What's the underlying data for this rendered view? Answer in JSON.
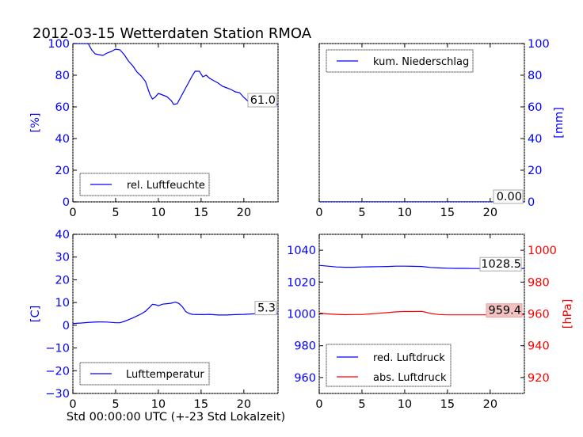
{
  "title": "2012-03-15 Wetterdaten Station RMOA",
  "xlabel": "Std 00:00:00 UTC (+-23 Std Lokalzeit)",
  "colors": {
    "blue": "#0000ff",
    "red": "#ff0000",
    "black": "#000000",
    "annotation_red_bg": "#f4c2c2"
  },
  "chart_data": [
    {
      "id": "humidity",
      "type": "line",
      "ylabel": "[%]",
      "axis_side": "left",
      "axis_color": "#0000ff",
      "xlim": [
        0,
        24
      ],
      "ylim": [
        0,
        100
      ],
      "xticks": [
        "0",
        "5",
        "10",
        "15",
        "20"
      ],
      "yticks": [
        "0",
        "20",
        "40",
        "60",
        "80",
        "100"
      ],
      "legend": {
        "placement": "lower-left",
        "entries": [
          "rel. Luftfeuchte"
        ]
      },
      "annotation": "61.0",
      "series": [
        {
          "name": "rel. Luftfeuchte",
          "color": "#0000ff",
          "x": [
            0,
            1.0,
            1.8,
            2.2,
            2.6,
            3.0,
            3.5,
            4.0,
            4.5,
            5.0,
            5.5,
            6.0,
            6.5,
            7.0,
            7.5,
            8.0,
            8.5,
            9.0,
            9.3,
            9.6,
            10.0,
            10.5,
            11.0,
            11.5,
            11.8,
            12.2,
            12.5,
            13.0,
            13.5,
            14.0,
            14.3,
            14.8,
            15.2,
            15.6,
            16.0,
            16.5,
            17.0,
            17.5,
            18.0,
            18.5,
            19.0,
            19.5,
            20.0,
            20.5,
            21.0,
            21.5,
            22.0,
            22.5,
            23.0,
            23.5,
            24.0
          ],
          "y": [
            100,
            100,
            100,
            96,
            93.5,
            93,
            92.5,
            94,
            95,
            96.5,
            96,
            93,
            89,
            86,
            82,
            79.5,
            76,
            68,
            65,
            66,
            68.5,
            67.5,
            66.5,
            64,
            61.5,
            62,
            65,
            70,
            75,
            80,
            82.5,
            82.5,
            79,
            80,
            78,
            76.5,
            75,
            73,
            72,
            71,
            69.5,
            69,
            66,
            63.5,
            61.5,
            61,
            63,
            63.5,
            63,
            63.5,
            61
          ]
        }
      ]
    },
    {
      "id": "precipitation",
      "type": "line",
      "ylabel": "[mm]",
      "axis_side": "right",
      "axis_color": "#0000ff",
      "xlim": [
        0,
        24
      ],
      "ylim": [
        0,
        100
      ],
      "xticks": [
        "0",
        "5",
        "10",
        "15",
        "20"
      ],
      "yticks": [
        "0",
        "20",
        "40",
        "60",
        "80",
        "100"
      ],
      "legend": {
        "placement": "upper-left",
        "entries": [
          "kum. Niederschlag"
        ]
      },
      "annotation": "0.00",
      "series": [
        {
          "name": "kum. Niederschlag",
          "color": "#0000ff",
          "x": [
            0,
            24
          ],
          "y": [
            0,
            0
          ]
        }
      ]
    },
    {
      "id": "temperature",
      "type": "line",
      "ylabel": "[C]",
      "axis_side": "left",
      "axis_color": "#0000ff",
      "xlim": [
        0,
        24
      ],
      "ylim": [
        -30,
        40
      ],
      "xticks": [
        "0",
        "5",
        "10",
        "15",
        "20"
      ],
      "yticks": [
        "−30",
        "−20",
        "−10",
        "0",
        "10",
        "20",
        "30",
        "40"
      ],
      "legend": {
        "placement": "lower-left",
        "entries": [
          "Lufttemperatur"
        ]
      },
      "annotation": "5.3",
      "series": [
        {
          "name": "Lufttemperatur",
          "color": "#0000ff",
          "x": [
            0,
            1,
            2,
            3,
            4,
            5,
            5.5,
            6,
            7,
            8,
            8.5,
            9.0,
            9.3,
            9.7,
            10.0,
            10.5,
            11.0,
            11.5,
            12.0,
            12.4,
            12.8,
            13.2,
            13.6,
            14.0,
            15.0,
            16.0,
            17.0,
            18.0,
            19.0,
            20.0,
            21.0,
            22.0,
            23.0,
            24.0
          ],
          "y": [
            0.8,
            1.0,
            1.3,
            1.5,
            1.4,
            1.1,
            1.1,
            1.7,
            3.2,
            5.0,
            6.2,
            8.0,
            9.2,
            9.0,
            8.6,
            9.3,
            9.5,
            9.7,
            10.2,
            9.6,
            8.2,
            6.0,
            5.2,
            4.8,
            4.7,
            4.8,
            4.5,
            4.5,
            4.7,
            4.8,
            5.0,
            5.1,
            5.2,
            5.3
          ]
        }
      ]
    },
    {
      "id": "pressure",
      "type": "line",
      "ylabel": "[hPa]",
      "axis_side": "left+right",
      "xlim": [
        0,
        24
      ],
      "ylim_left": [
        950,
        1050
      ],
      "ylim_right": [
        910,
        1010
      ],
      "left_axis_color": "#0000ff",
      "right_axis_color": "#ff0000",
      "xticks": [
        "0",
        "5",
        "10",
        "15",
        "20"
      ],
      "yticks_left": [
        "960",
        "980",
        "1000",
        "1020",
        "1040"
      ],
      "yticks_right": [
        "920",
        "940",
        "960",
        "980",
        "1000"
      ],
      "legend": {
        "placement": "lower-left",
        "entries": [
          "red. Luftdruck",
          "abs. Luftdruck"
        ]
      },
      "annotations": [
        "1028.5",
        "959.4"
      ],
      "series": [
        {
          "name": "red. Luftdruck",
          "axis": "left",
          "color": "#0000ff",
          "x": [
            0,
            1,
            2,
            3,
            4,
            5,
            6,
            7,
            8,
            9,
            10,
            11,
            12,
            13,
            14,
            15,
            16,
            17,
            18,
            19,
            20,
            21,
            22,
            23,
            24
          ],
          "y": [
            1030.5,
            1030.0,
            1029.5,
            1029.3,
            1029.3,
            1029.5,
            1029.6,
            1029.7,
            1029.8,
            1030.0,
            1030.0,
            1029.9,
            1029.8,
            1029.2,
            1028.9,
            1028.7,
            1028.6,
            1028.6,
            1028.5,
            1028.5,
            1028.5,
            1028.5,
            1028.5,
            1028.5,
            1028.5
          ]
        },
        {
          "name": "abs. Luftdruck",
          "axis": "right",
          "color": "#ff0000",
          "x": [
            0,
            1,
            2,
            3,
            4,
            5,
            6,
            7,
            8,
            9,
            10,
            11,
            12,
            12.5,
            13,
            14,
            15,
            16,
            17,
            18,
            19,
            20,
            21,
            22,
            23,
            24
          ],
          "y": [
            960.5,
            960.0,
            959.7,
            959.5,
            959.6,
            959.6,
            960.0,
            960.4,
            960.8,
            961.3,
            961.5,
            961.5,
            961.6,
            961.0,
            960.3,
            959.6,
            959.4,
            959.4,
            959.4,
            959.4,
            959.4,
            959.4,
            959.4,
            959.4,
            959.4,
            959.4
          ]
        }
      ]
    }
  ]
}
